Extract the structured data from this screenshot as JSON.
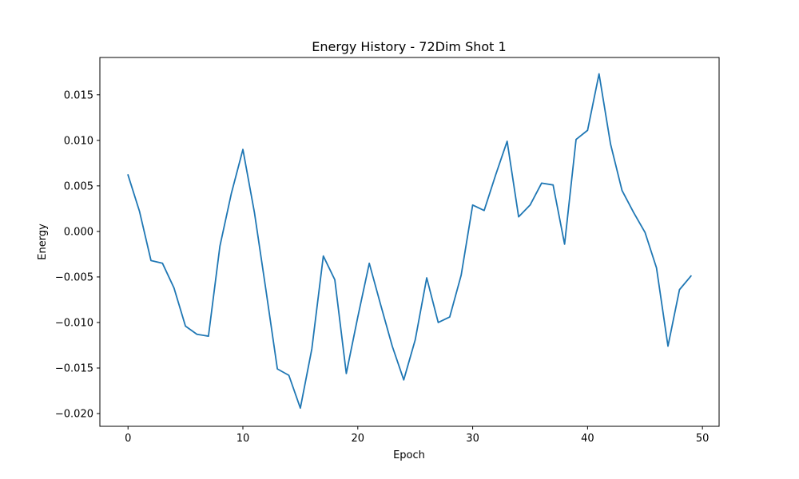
{
  "chart_data": {
    "type": "line",
    "title": "Energy History - 72Dim Shot 1",
    "xlabel": "Epoch",
    "ylabel": "Energy",
    "xlim": [
      -2.45,
      51.45
    ],
    "ylim": [
      -0.0214,
      0.0191
    ],
    "x_ticks": [
      0,
      10,
      20,
      30,
      40,
      50
    ],
    "x_tick_labels": [
      "0",
      "10",
      "20",
      "30",
      "40",
      "50"
    ],
    "y_ticks": [
      -0.02,
      -0.015,
      -0.01,
      -0.005,
      0.0,
      0.005,
      0.01,
      0.015
    ],
    "y_tick_labels": [
      "−0.020",
      "−0.015",
      "−0.010",
      "−0.005",
      "0.000",
      "0.005",
      "0.010",
      "0.015"
    ],
    "grid": false,
    "series": [
      {
        "color": "#1f77b4",
        "x": [
          0,
          1,
          2,
          3,
          4,
          5,
          6,
          7,
          8,
          9,
          10,
          11,
          12,
          13,
          14,
          15,
          16,
          17,
          18,
          19,
          20,
          21,
          22,
          23,
          24,
          25,
          26,
          27,
          28,
          29,
          30,
          31,
          32,
          33,
          34,
          35,
          36,
          37,
          38,
          39,
          40,
          41,
          42,
          43,
          44,
          45,
          46,
          47,
          48,
          49
        ],
        "values": [
          0.0062,
          0.0022,
          -0.0032,
          -0.0035,
          -0.0062,
          -0.0104,
          -0.0113,
          -0.0115,
          -0.0016,
          0.0042,
          0.009,
          0.0021,
          -0.0064,
          -0.0151,
          -0.0158,
          -0.0194,
          -0.0129,
          -0.0027,
          -0.0053,
          -0.0156,
          -0.0094,
          -0.0035,
          -0.0081,
          -0.0126,
          -0.0163,
          -0.0119,
          -0.0051,
          -0.01,
          -0.0094,
          -0.0048,
          0.0029,
          0.0023,
          0.0062,
          0.0099,
          0.0016,
          0.0029,
          0.0053,
          0.0051,
          -0.0014,
          0.0101,
          0.0111,
          0.0173,
          0.0096,
          0.0045,
          0.0021,
          -0.0001,
          -0.004,
          -0.0126,
          -0.0064,
          -0.0049
        ]
      }
    ]
  }
}
